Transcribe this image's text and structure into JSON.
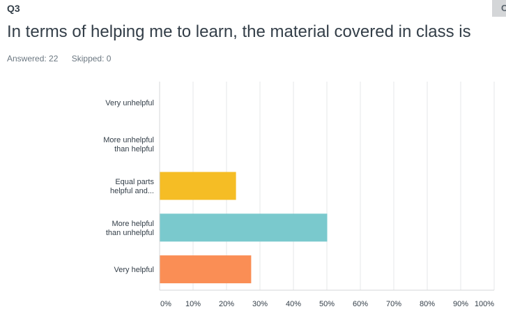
{
  "question": {
    "number": "Q3",
    "title": "In terms of helping me to learn, the material covered in class is",
    "answered": "Answered: 22",
    "skipped": "Skipped: 0"
  },
  "corner_button": {
    "label": "C"
  },
  "chart_data": {
    "type": "bar",
    "orientation": "horizontal",
    "categories": [
      "Very unhelpful",
      "More unhelpful than helpful",
      "Equal parts helpful and...",
      "More helpful than unhelpful",
      "Very helpful"
    ],
    "category_lines": [
      [
        "Very unhelpful"
      ],
      [
        "More unhelpful",
        "than helpful"
      ],
      [
        "Equal parts",
        "helpful and..."
      ],
      [
        "More helpful",
        "than unhelpful"
      ],
      [
        "Very helpful"
      ]
    ],
    "values": [
      0,
      0,
      22.73,
      50.0,
      27.27
    ],
    "colors": [
      "#9ec3e1",
      "#9ec3e1",
      "#f5bd25",
      "#7ac9cd",
      "#fa8e55"
    ],
    "xlim": [
      0,
      100
    ],
    "xticks": [
      0,
      10,
      20,
      30,
      40,
      50,
      60,
      70,
      80,
      90,
      100
    ],
    "xtick_labels": [
      "0%",
      "10%",
      "20%",
      "30%",
      "40%",
      "50%",
      "60%",
      "70%",
      "80%",
      "90%",
      "100%"
    ],
    "grid": true,
    "title": "",
    "xlabel": "",
    "ylabel": ""
  }
}
